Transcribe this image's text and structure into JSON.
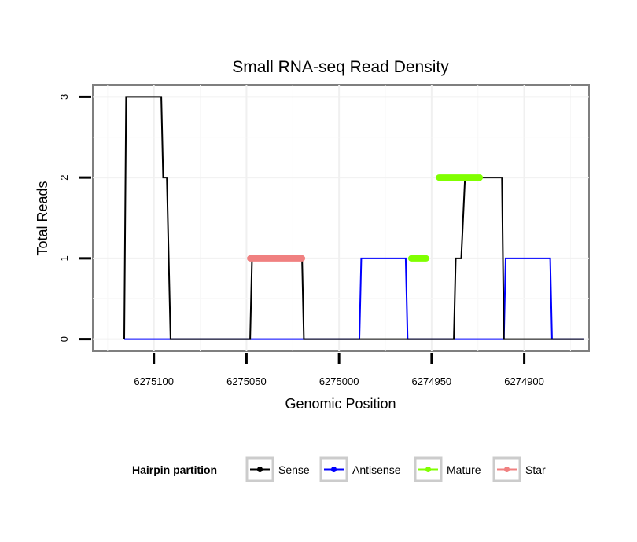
{
  "chart_data": {
    "type": "line",
    "title": "Small RNA-seq Read Density",
    "xlabel": "Genomic Position",
    "ylabel": "Total Reads",
    "x_reversed": true,
    "xlim": [
      6275133,
      6274865
    ],
    "ylim": [
      -0.15,
      3.15
    ],
    "x_ticks": [
      6275100,
      6275050,
      6275000,
      6274950,
      6274900
    ],
    "x_tick_labels": [
      "6275100",
      "6275050",
      "6275000",
      "6274950",
      "6274900"
    ],
    "y_ticks": [
      0,
      1,
      2,
      3
    ],
    "y_tick_labels": [
      "0",
      "1",
      "2",
      "3"
    ],
    "grid": true,
    "legend": {
      "title": "Hairpin partition",
      "placement": "bottom",
      "entries": [
        "Sense",
        "Antisense",
        "Mature",
        "Star"
      ]
    },
    "series": [
      {
        "name": "Sense",
        "color": "#000000",
        "style": "line",
        "x": [
          6275116,
          6275115,
          6275096,
          6275095,
          6275093,
          6275091,
          6275048,
          6275047,
          6275020,
          6275019,
          6274938,
          6274937,
          6274935,
          6274934,
          6274932,
          6274931,
          6274912,
          6274911,
          6274868
        ],
        "y": [
          0,
          3,
          3,
          2,
          2,
          0,
          0,
          1,
          1,
          0,
          0,
          1,
          1,
          1,
          2,
          2,
          2,
          0,
          0
        ]
      },
      {
        "name": "Antisense",
        "color": "#0000ff",
        "style": "line",
        "x": [
          6275116,
          6274989,
          6274988,
          6274964,
          6274963,
          6274911,
          6274910,
          6274886,
          6274885,
          6274868
        ],
        "y": [
          0,
          0,
          1,
          1,
          0,
          0,
          1,
          1,
          0,
          0
        ]
      },
      {
        "name": "Mature",
        "color": "#80ff00",
        "style": "segment",
        "segments": [
          {
            "x": [
              6274961,
              6274953
            ],
            "y": 1
          },
          {
            "x": [
              6274946,
              6274924
            ],
            "y": 2
          }
        ]
      },
      {
        "name": "Star",
        "color": "#f08080",
        "style": "segment",
        "segments": [
          {
            "x": [
              6275048,
              6275020
            ],
            "y": 1
          }
        ]
      }
    ]
  }
}
